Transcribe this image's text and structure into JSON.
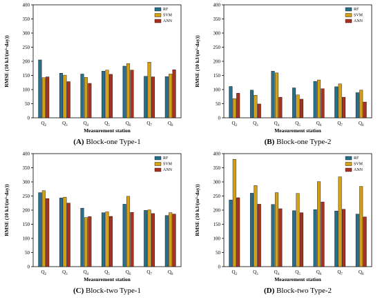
{
  "colors": {
    "RF": "#2a6f8a",
    "SVM": "#d4a017",
    "ANN": "#a83220"
  },
  "chart_data": [
    {
      "type": "bar",
      "caption_letter": "(A)",
      "caption_text": " Block-one Type-1",
      "categories": [
        "Q",
        "Q",
        "Q",
        "Q",
        "Q",
        "Q",
        "Q"
      ],
      "category_subs": [
        "2",
        "3",
        "4",
        "5",
        "6",
        "7",
        "8"
      ],
      "series": [
        {
          "name": "RF",
          "values": [
            205,
            158,
            155,
            165,
            183,
            147,
            146
          ]
        },
        {
          "name": "SVM",
          "values": [
            142,
            151,
            143,
            169,
            192,
            197,
            155
          ]
        },
        {
          "name": "ANN",
          "values": [
            145,
            128,
            122,
            154,
            169,
            145,
            170
          ]
        }
      ],
      "ylabel": "RMSE (10 kJ/(m²·day))",
      "xlabel": "Measurement station",
      "ylim": [
        0,
        400
      ],
      "yticks": [
        "0",
        "50",
        "100",
        "150",
        "200",
        "250",
        "300",
        "350",
        "400"
      ],
      "legend": "top-right"
    },
    {
      "type": "bar",
      "caption_letter": "(B)",
      "caption_text": " Block-one Type-2",
      "categories": [
        "Q",
        "Q",
        "Q",
        "Q",
        "Q",
        "Q",
        "Q"
      ],
      "category_subs": [
        "2",
        "3",
        "4",
        "5",
        "6",
        "7",
        "8"
      ],
      "series": [
        {
          "name": "RF",
          "values": [
            111,
            98,
            165,
            106,
            129,
            110,
            89
          ]
        },
        {
          "name": "SVM",
          "values": [
            68,
            80,
            159,
            81,
            134,
            120,
            98
          ]
        },
        {
          "name": "ANN",
          "values": [
            87,
            49,
            73,
            66,
            103,
            73,
            56
          ]
        }
      ],
      "ylabel": "RMSE (10 kJ/(m²·day))",
      "xlabel": "Measurement station",
      "ylim": [
        0,
        400
      ],
      "yticks": [
        "0",
        "50",
        "100",
        "150",
        "200",
        "250",
        "300",
        "350",
        "400"
      ],
      "legend": "top-right"
    },
    {
      "type": "bar",
      "caption_letter": "(C)",
      "caption_text": " Block-two Type-1",
      "categories": [
        "Q",
        "Q",
        "Q",
        "Q",
        "Q",
        "Q",
        "Q"
      ],
      "category_subs": [
        "2",
        "3",
        "4",
        "5",
        "6",
        "7",
        "8"
      ],
      "series": [
        {
          "name": "RF",
          "values": [
            262,
            243,
            207,
            191,
            221,
            199,
            181
          ]
        },
        {
          "name": "SVM",
          "values": [
            269,
            246,
            174,
            194,
            249,
            201,
            191
          ]
        },
        {
          "name": "ANN",
          "values": [
            241,
            225,
            177,
            178,
            192,
            188,
            186
          ]
        }
      ],
      "ylabel": "RMSE (10 kJ/(m²·day))",
      "xlabel": "Measurement station",
      "ylim": [
        0,
        400
      ],
      "yticks": [
        "0",
        "50",
        "100",
        "150",
        "200",
        "250",
        "300",
        "350",
        "400"
      ],
      "legend": "top-right"
    },
    {
      "type": "bar",
      "caption_letter": "(D)",
      "caption_text": " Block-two Type-2",
      "categories": [
        "Q",
        "Q",
        "Q",
        "Q",
        "Q",
        "Q",
        "Q"
      ],
      "category_subs": [
        "2",
        "3",
        "4",
        "5",
        "6",
        "7",
        "8"
      ],
      "series": [
        {
          "name": "RF",
          "values": [
            236,
            260,
            220,
            198,
            202,
            197,
            186
          ]
        },
        {
          "name": "SVM",
          "values": [
            380,
            287,
            262,
            259,
            301,
            318,
            284
          ]
        },
        {
          "name": "ANN",
          "values": [
            244,
            221,
            205,
            191,
            229,
            203,
            176
          ]
        }
      ],
      "ylabel": "RMSE (10 kJ/(m²·day))",
      "xlabel": "Measurement station",
      "ylim": [
        0,
        400
      ],
      "yticks": [
        "0",
        "50",
        "100",
        "150",
        "200",
        "250",
        "300",
        "350",
        "400"
      ],
      "legend": "top-right"
    }
  ]
}
